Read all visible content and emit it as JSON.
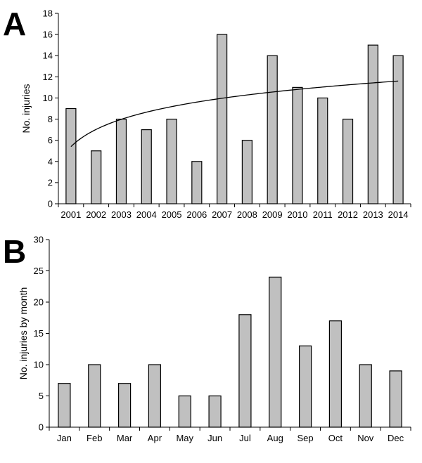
{
  "chart_data": [
    {
      "panel": "A",
      "type": "bar",
      "categories": [
        "2001",
        "2002",
        "2003",
        "2004",
        "2005",
        "2006",
        "2007",
        "2008",
        "2009",
        "2010",
        "2011",
        "2012",
        "2013",
        "2014"
      ],
      "values": [
        9,
        5,
        8,
        7,
        8,
        4,
        16,
        6,
        14,
        11,
        10,
        8,
        15,
        14
      ],
      "ylabel": "No. injuries",
      "xlabel": "",
      "ylim": [
        0,
        18
      ],
      "yticks": [
        0,
        2,
        4,
        6,
        8,
        10,
        12,
        14,
        16,
        18
      ],
      "trendline": {
        "type": "logarithmic",
        "start": 5.4,
        "end": 11.6
      },
      "bar_color": "#c0c0c0",
      "grid": false
    },
    {
      "panel": "B",
      "type": "bar",
      "categories": [
        "Jan",
        "Feb",
        "Mar",
        "Apr",
        "May",
        "Jun",
        "Jul",
        "Aug",
        "Sep",
        "Oct",
        "Nov",
        "Dec"
      ],
      "values": [
        7,
        10,
        7,
        10,
        5,
        5,
        18,
        24,
        13,
        17,
        10,
        9
      ],
      "ylabel": "No. injuries by month",
      "xlabel": "",
      "ylim": [
        0,
        30
      ],
      "yticks": [
        0,
        5,
        10,
        15,
        20,
        25,
        30
      ],
      "bar_color": "#c0c0c0",
      "grid": false
    }
  ]
}
